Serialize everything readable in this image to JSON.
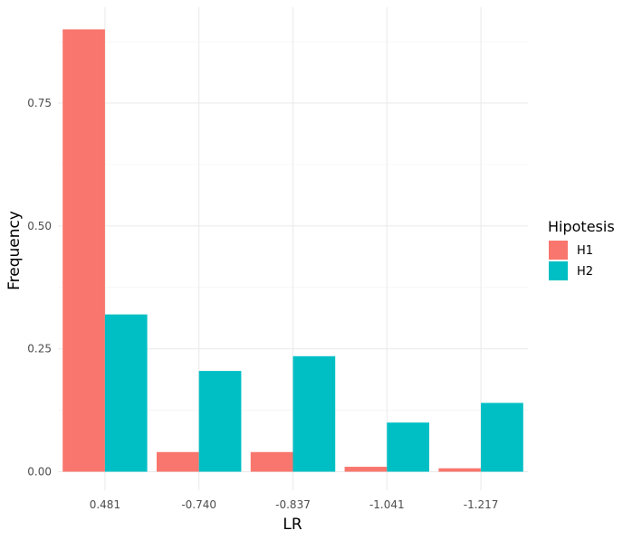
{
  "chart_data": {
    "type": "bar",
    "title": "",
    "xlabel": "LR",
    "ylabel": "Frequency",
    "categories": [
      "0.481",
      "-0.740",
      "-0.837",
      "-1.041",
      "-1.217"
    ],
    "series": [
      {
        "name": "H1",
        "color": "#F8766D",
        "values": [
          0.9,
          0.04,
          0.04,
          0.01,
          0.007
        ]
      },
      {
        "name": "H2",
        "color": "#00BFC4",
        "values": [
          0.32,
          0.205,
          0.235,
          0.1,
          0.14
        ]
      }
    ],
    "ylim": [
      0,
      0.945
    ],
    "yticks": [
      0.0,
      0.25,
      0.5,
      0.75
    ],
    "ytick_labels": [
      "0.00",
      "0.25",
      "0.50",
      "0.75"
    ],
    "grid": true,
    "legend": {
      "title": "Hipotesis",
      "position": "right",
      "entries": [
        "H1",
        "H2"
      ]
    }
  }
}
